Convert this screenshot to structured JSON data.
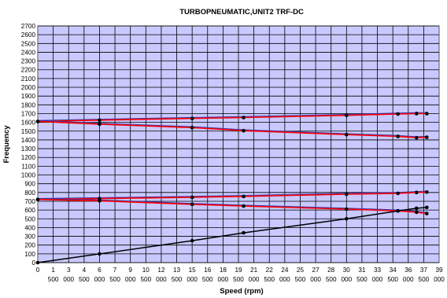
{
  "chart_data": {
    "type": "line",
    "title": "TURBOPNEUMATIC,UNIT2 TRF-DC",
    "xlabel": "Speed (rpm)",
    "ylabel": "Frequency",
    "xlim": [
      0,
      39000
    ],
    "ylim": [
      0,
      2700
    ],
    "y_ticks": [
      0,
      100,
      200,
      300,
      400,
      500,
      600,
      700,
      800,
      900,
      1000,
      1100,
      1200,
      1300,
      1400,
      1500,
      1600,
      1700,
      1800,
      1900,
      2000,
      2100,
      2200,
      2300,
      2400,
      2500,
      2600,
      2700
    ],
    "x_ticks": [
      {
        "value": 0,
        "line1": "0",
        "line2": ""
      },
      {
        "value": 1500,
        "line1": "1",
        "line2": "500"
      },
      {
        "value": 3000,
        "line1": "3",
        "line2": "000"
      },
      {
        "value": 4500,
        "line1": "4",
        "line2": "500"
      },
      {
        "value": 6000,
        "line1": "6",
        "line2": "000"
      },
      {
        "value": 7500,
        "line1": "7",
        "line2": "500"
      },
      {
        "value": 9000,
        "line1": "9",
        "line2": "000"
      },
      {
        "value": 10500,
        "line1": "10",
        "line2": "500"
      },
      {
        "value": 12000,
        "line1": "12",
        "line2": "000"
      },
      {
        "value": 13500,
        "line1": "13",
        "line2": "500"
      },
      {
        "value": 15000,
        "line1": "15",
        "line2": "000"
      },
      {
        "value": 16500,
        "line1": "16",
        "line2": "500"
      },
      {
        "value": 18000,
        "line1": "18",
        "line2": "000"
      },
      {
        "value": 19500,
        "line1": "19",
        "line2": "500"
      },
      {
        "value": 21000,
        "line1": "21",
        "line2": "000"
      },
      {
        "value": 22500,
        "line1": "22",
        "line2": "500"
      },
      {
        "value": 24000,
        "line1": "24",
        "line2": "000"
      },
      {
        "value": 25500,
        "line1": "25",
        "line2": "500"
      },
      {
        "value": 27000,
        "line1": "27",
        "line2": "000"
      },
      {
        "value": 28500,
        "line1": "28",
        "line2": "500"
      },
      {
        "value": 30000,
        "line1": "30",
        "line2": "000"
      },
      {
        "value": 31500,
        "line1": "31",
        "line2": "500"
      },
      {
        "value": 33000,
        "line1": "33",
        "line2": "000"
      },
      {
        "value": 34500,
        "line1": "34",
        "line2": "500"
      },
      {
        "value": 36000,
        "line1": "36",
        "line2": "000"
      },
      {
        "value": 37500,
        "line1": "37",
        "line2": "500"
      },
      {
        "value": 39000,
        "line1": "39",
        "line2": "000"
      }
    ],
    "grid": true,
    "legend": "none",
    "colors": {
      "plot_bg": "#c9c9ff",
      "grid": "#000000",
      "mode_line": "#ff0000",
      "mode_trace": "#3333aa",
      "excitation_line": "#000000",
      "marker": "#000000"
    },
    "series": [
      {
        "line": "red",
        "x": [
          0,
          6000,
          15000,
          20000,
          30000,
          35000,
          36800,
          37800
        ],
        "y": [
          1610,
          1625,
          1645,
          1655,
          1680,
          1695,
          1700,
          1700
        ]
      },
      {
        "line": "red",
        "x": [
          0,
          6000,
          15000,
          20000,
          30000,
          35000,
          36800,
          37800
        ],
        "y": [
          1610,
          1580,
          1540,
          1505,
          1460,
          1440,
          1425,
          1430
        ]
      },
      {
        "line": "red",
        "x": [
          0,
          6000,
          15000,
          20000,
          30000,
          35000,
          36800,
          37800
        ],
        "y": [
          720,
          730,
          745,
          755,
          780,
          790,
          800,
          805
        ]
      },
      {
        "line": "red",
        "x": [
          0,
          6000,
          15000,
          20000,
          30000,
          35000,
          36800,
          37800
        ],
        "y": [
          720,
          705,
          665,
          645,
          610,
          590,
          575,
          560
        ]
      },
      {
        "line": "black",
        "x": [
          0,
          6000,
          15000,
          20000,
          30000,
          35000,
          36800,
          37800
        ],
        "y": [
          0,
          100,
          250,
          340,
          500,
          590,
          620,
          630
        ]
      }
    ]
  }
}
